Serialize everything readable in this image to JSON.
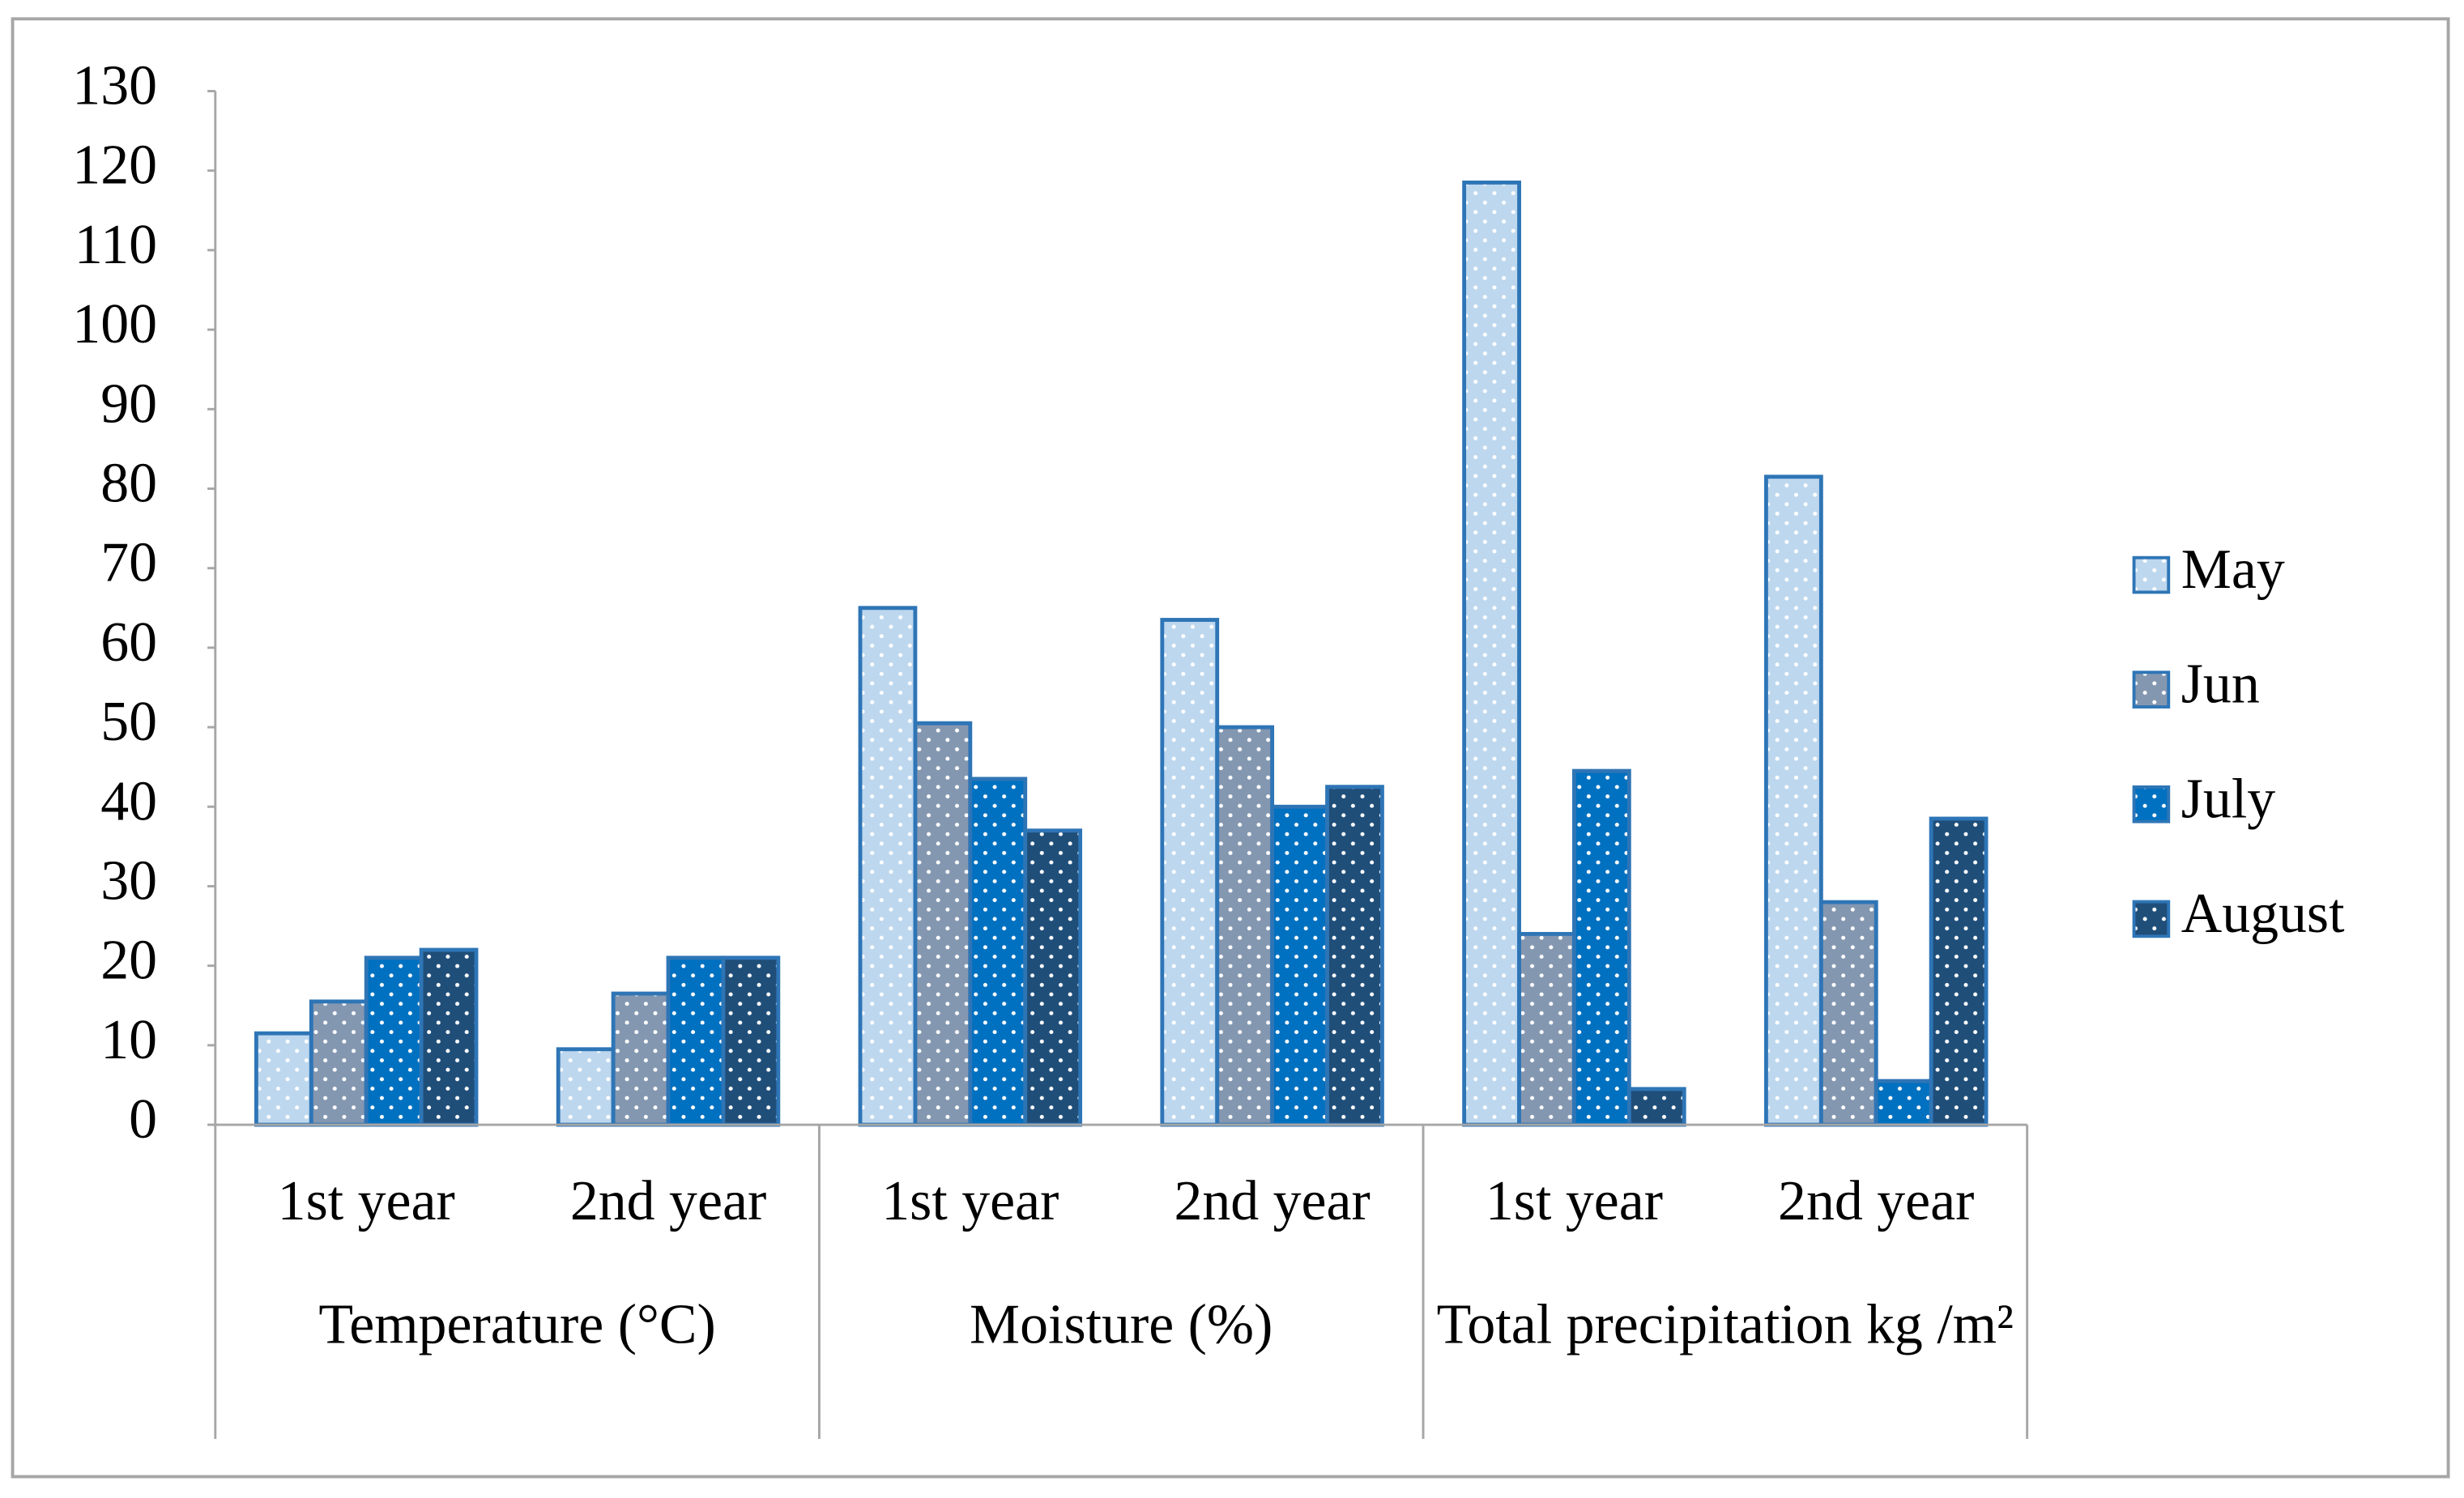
{
  "chart_data": {
    "type": "bar",
    "groups": [
      "Temperature (°C)",
      "Moisture (%)",
      "Total precipitation kg /m²"
    ],
    "categories": [
      "1st year",
      "2nd year",
      "1st year",
      "2nd year",
      "1st year",
      "2nd year"
    ],
    "series": [
      {
        "name": "May",
        "color": "#bdd7ee",
        "values": [
          11.5,
          9.5,
          65,
          63.5,
          118.5,
          81.5
        ]
      },
      {
        "name": "Jun",
        "color": "#8497b0",
        "values": [
          15.5,
          16.5,
          50.5,
          50,
          24,
          28
        ]
      },
      {
        "name": "July",
        "color": "#0070c0",
        "values": [
          21,
          21,
          43.5,
          40,
          44.5,
          5.5
        ]
      },
      {
        "name": "August",
        "color": "#1f4e79",
        "values": [
          22,
          21,
          37,
          42.5,
          4.5,
          38.5
        ]
      }
    ],
    "ylim": [
      0,
      130
    ],
    "yticks": [
      0,
      10,
      20,
      30,
      40,
      50,
      60,
      70,
      80,
      90,
      100,
      110,
      120,
      130
    ],
    "grid": false,
    "legend": "right"
  }
}
